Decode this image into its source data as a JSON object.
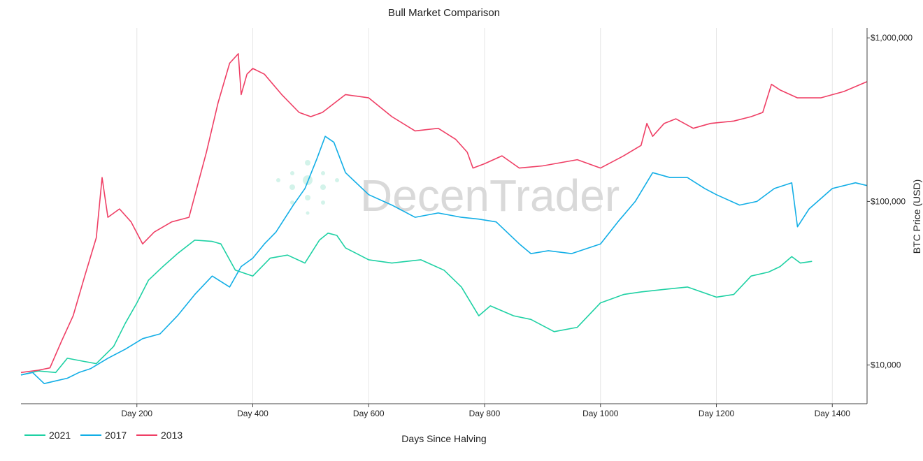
{
  "chart_data": {
    "type": "line",
    "title": "Bull Market Comparison",
    "xlabel": "Days Since Halving",
    "ylabel": "BTC Price (USD)",
    "xlim": [
      0,
      1460
    ],
    "ylim": [
      5800,
      1150000
    ],
    "y_scale": "log",
    "x_ticks": [
      200,
      400,
      600,
      800,
      1000,
      1200,
      1400
    ],
    "x_tick_labels": [
      "Day 200",
      "Day 400",
      "Day 600",
      "Day 800",
      "Day 1000",
      "Day 1200",
      "Day 1400"
    ],
    "y_ticks": [
      10000,
      100000,
      1000000
    ],
    "y_tick_labels": [
      "$10,000",
      "$100,000",
      "$1,000,000"
    ],
    "y_axis_side": "right",
    "grid": "vertical",
    "legend_position": "bottom-left",
    "series": [
      {
        "name": "2021",
        "color": "#1fd1a4",
        "x": [
          0,
          30,
          60,
          80,
          110,
          130,
          160,
          180,
          200,
          220,
          245,
          270,
          300,
          330,
          345,
          370,
          400,
          430,
          460,
          490,
          515,
          530,
          545,
          560,
          600,
          640,
          690,
          730,
          760,
          790,
          810,
          850,
          880,
          920,
          960,
          1000,
          1040,
          1070,
          1110,
          1150,
          1200,
          1230,
          1260,
          1290,
          1310,
          1330,
          1345,
          1365
        ],
        "values": [
          8700,
          9200,
          9000,
          11000,
          10500,
          10200,
          13000,
          18000,
          24000,
          33000,
          40000,
          48000,
          58000,
          57000,
          55000,
          38000,
          35000,
          45000,
          47000,
          42000,
          58000,
          64000,
          62000,
          52000,
          44000,
          42000,
          44000,
          38000,
          30000,
          20000,
          23000,
          20000,
          19000,
          16000,
          17000,
          24000,
          27000,
          28000,
          29000,
          30000,
          26000,
          27000,
          35000,
          37000,
          40000,
          46000,
          42000,
          43000
        ]
      },
      {
        "name": "2017",
        "color": "#12aee6",
        "x": [
          0,
          20,
          40,
          60,
          80,
          100,
          120,
          150,
          180,
          210,
          240,
          270,
          300,
          330,
          360,
          380,
          400,
          420,
          440,
          470,
          490,
          510,
          525,
          540,
          560,
          600,
          640,
          680,
          720,
          760,
          790,
          820,
          860,
          880,
          910,
          950,
          1000,
          1030,
          1060,
          1090,
          1120,
          1150,
          1180,
          1200,
          1240,
          1270,
          1300,
          1330,
          1340,
          1360,
          1400,
          1440,
          1460
        ],
        "values": [
          8700,
          9000,
          7700,
          8000,
          8300,
          9000,
          9500,
          11000,
          12500,
          14500,
          15500,
          20000,
          27000,
          35000,
          30000,
          40000,
          45000,
          55000,
          65000,
          95000,
          120000,
          180000,
          250000,
          230000,
          150000,
          110000,
          95000,
          80000,
          85000,
          80000,
          78000,
          75000,
          55000,
          48000,
          50000,
          48000,
          55000,
          75000,
          100000,
          150000,
          140000,
          140000,
          120000,
          110000,
          95000,
          100000,
          120000,
          130000,
          70000,
          90000,
          120000,
          130000,
          125000
        ]
      },
      {
        "name": "2013",
        "color": "#ef3f65",
        "x": [
          0,
          30,
          50,
          70,
          90,
          110,
          130,
          140,
          150,
          170,
          190,
          210,
          230,
          260,
          290,
          320,
          340,
          360,
          375,
          380,
          390,
          400,
          420,
          450,
          480,
          500,
          520,
          560,
          600,
          640,
          680,
          720,
          750,
          770,
          780,
          800,
          830,
          860,
          900,
          960,
          1000,
          1040,
          1070,
          1080,
          1090,
          1110,
          1130,
          1160,
          1190,
          1230,
          1260,
          1280,
          1295,
          1310,
          1340,
          1380,
          1420,
          1460
        ],
        "values": [
          9000,
          9300,
          9600,
          14000,
          20000,
          35000,
          60000,
          140000,
          80000,
          90000,
          75000,
          55000,
          65000,
          75000,
          80000,
          200000,
          400000,
          700000,
          800000,
          450000,
          600000,
          650000,
          600000,
          450000,
          350000,
          330000,
          350000,
          450000,
          430000,
          330000,
          270000,
          280000,
          240000,
          200000,
          160000,
          170000,
          190000,
          160000,
          165000,
          180000,
          160000,
          190000,
          220000,
          300000,
          250000,
          300000,
          320000,
          280000,
          300000,
          310000,
          330000,
          350000,
          520000,
          480000,
          430000,
          430000,
          470000,
          540000
        ]
      }
    ]
  },
  "legend": [
    {
      "label": "2021",
      "color": "#1fd1a4"
    },
    {
      "label": "2017",
      "color": "#12aee6"
    },
    {
      "label": "2013",
      "color": "#ef3f65"
    }
  ],
  "watermark": "DecenTrader"
}
